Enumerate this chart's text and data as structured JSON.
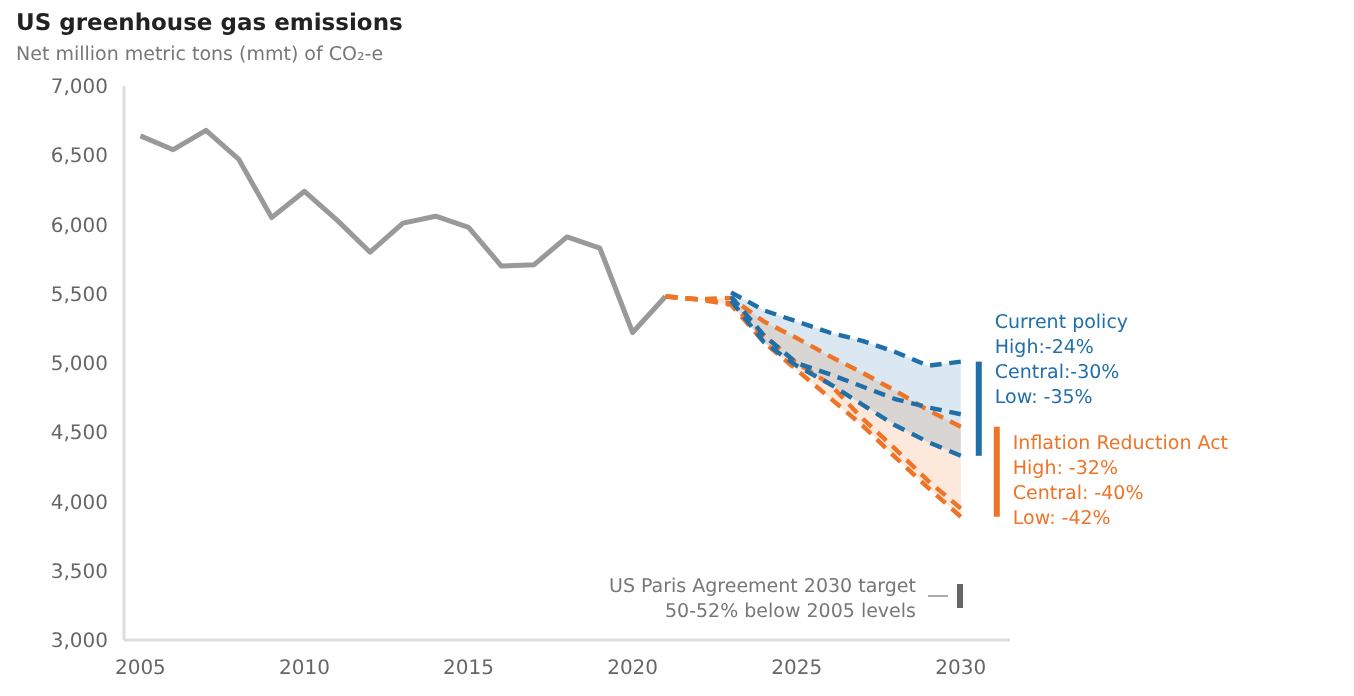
{
  "chart_data": {
    "type": "line",
    "title": "US greenhouse gas emissions",
    "subtitle": "Net million metric tons (mmt) of CO₂-e",
    "xlim": [
      2004.5,
      2031.5
    ],
    "xticks": [
      2005,
      2010,
      2015,
      2020,
      2025,
      2030
    ],
    "ylim": [
      3000,
      7000
    ],
    "yticks": [
      {
        "value": 3000,
        "label": "3,000"
      },
      {
        "value": 3500,
        "label": "3,500"
      },
      {
        "value": 4000,
        "label": "4,000"
      },
      {
        "value": 4500,
        "label": "4,500"
      },
      {
        "value": 5000,
        "label": "5,000"
      },
      {
        "value": 5500,
        "label": "5,500"
      },
      {
        "value": 6000,
        "label": "6,000"
      },
      {
        "value": 6500,
        "label": "6,500"
      },
      {
        "value": 7000,
        "label": "7,000"
      }
    ],
    "grid": false,
    "marker": "none",
    "series": [
      {
        "color": "#999999",
        "line_style": "solid",
        "x": [
          2005,
          2006,
          2007,
          2008,
          2009,
          2010,
          2011,
          2012,
          2013,
          2014,
          2015,
          2016,
          2017,
          2018,
          2019,
          2020,
          2021
        ],
        "values": [
          6640,
          6540,
          6680,
          6470,
          6050,
          6240,
          6030,
          5800,
          6010,
          6060,
          5980,
          5700,
          5710,
          5910,
          5830,
          5220,
          5480
        ]
      },
      {
        "color": "#ee7428",
        "line_style": "dashed",
        "x": [
          2021,
          2022,
          2023,
          2024,
          2025,
          2026,
          2027,
          2028,
          2029,
          2030
        ],
        "values": [
          5480,
          5460,
          5470,
          5300,
          5180,
          5050,
          4930,
          4800,
          4660,
          4540
        ]
      },
      {
        "color": "#ee7428",
        "line_style": "dashed",
        "x": [
          2021,
          2022,
          2023,
          2024,
          2025,
          2026,
          2027,
          2028,
          2029,
          2030
        ],
        "values": [
          5480,
          5460,
          5430,
          5200,
          5000,
          4850,
          4600,
          4380,
          4150,
          3950
        ],
        "upper": [
          5480,
          5460,
          5470,
          5300,
          5180,
          5050,
          4930,
          4800,
          4660,
          4540
        ],
        "lower": [
          5480,
          5460,
          5420,
          5150,
          4950,
          4750,
          4550,
          4320,
          4100,
          3890
        ]
      },
      {
        "color": "#ee7428",
        "line_style": "dashed",
        "x": [
          2021,
          2022,
          2023,
          2024,
          2025,
          2026,
          2027,
          2028,
          2029,
          2030
        ],
        "values": [
          5480,
          5460,
          5420,
          5150,
          4950,
          4750,
          4550,
          4320,
          4100,
          3890
        ]
      },
      {
        "color": "#1f6fa8",
        "line_style": "dashed",
        "x": [
          2023,
          2024,
          2025,
          2026,
          2027,
          2028,
          2029,
          2030
        ],
        "values": [
          5510,
          5380,
          5300,
          5220,
          5160,
          5080,
          4980,
          5010
        ]
      },
      {
        "color": "#1f6fa8",
        "line_style": "dashed",
        "x": [
          2023,
          2024,
          2025,
          2026,
          2027,
          2028,
          2029,
          2030
        ],
        "values": [
          5480,
          5200,
          5000,
          4920,
          4830,
          4740,
          4680,
          4630
        ],
        "upper": [
          5510,
          5380,
          5300,
          5220,
          5160,
          5080,
          4980,
          5010
        ],
        "lower": [
          5450,
          5150,
          4980,
          4850,
          4700,
          4550,
          4430,
          4330
        ]
      },
      {
        "color": "#1f6fa8",
        "line_style": "dashed",
        "x": [
          2023,
          2024,
          2025,
          2026,
          2027,
          2028,
          2029,
          2030
        ],
        "values": [
          5450,
          5150,
          4980,
          4850,
          4700,
          4550,
          4430,
          4330
        ]
      }
    ],
    "annotations": [
      {
        "text": "Current policy\nHigh:-24%\nCentral:-30%\nLow: -35%",
        "x": 2030,
        "y": 5010
      },
      {
        "text": "Inflation Reduction Act\nHigh: -32%\nCentral: -40%\nLow: -42%",
        "x": 2030,
        "y": 4540
      },
      "US Paris Agreement 2030 target\n50-52% below 2005 levels"
    ]
  }
}
